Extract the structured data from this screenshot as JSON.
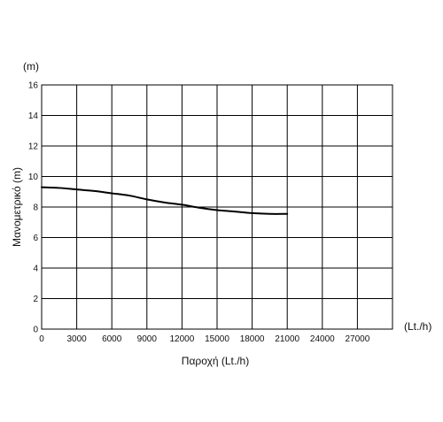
{
  "chart_data": {
    "type": "line",
    "title": "",
    "xlabel": "Παροχή (Lt./h)",
    "ylabel": "Μανομετρικό  (m)",
    "x_unit": "(Lt./h)",
    "y_unit": "(m)",
    "xlim": [
      0,
      30000
    ],
    "ylim": [
      0,
      16
    ],
    "x_ticks": [
      0,
      3000,
      6000,
      9000,
      12000,
      15000,
      18000,
      21000,
      24000,
      27000
    ],
    "y_ticks": [
      0,
      2,
      4,
      6,
      8,
      10,
      12,
      14,
      16
    ],
    "x_gridlines": [
      0,
      3000,
      6000,
      9000,
      12000,
      15000,
      18000,
      21000,
      24000,
      27000,
      30000
    ],
    "grid": true,
    "legend": "none",
    "line_color": "#000000",
    "series": [
      {
        "x": [
          0,
          1500,
          3000,
          4500,
          6000,
          7500,
          9000,
          10500,
          12000,
          13500,
          15000,
          16500,
          18000,
          19500,
          21000
        ],
        "values": [
          9.3,
          9.25,
          9.15,
          9.05,
          8.9,
          8.75,
          8.5,
          8.3,
          8.15,
          7.95,
          7.8,
          7.7,
          7.6,
          7.55,
          7.55
        ]
      }
    ]
  }
}
